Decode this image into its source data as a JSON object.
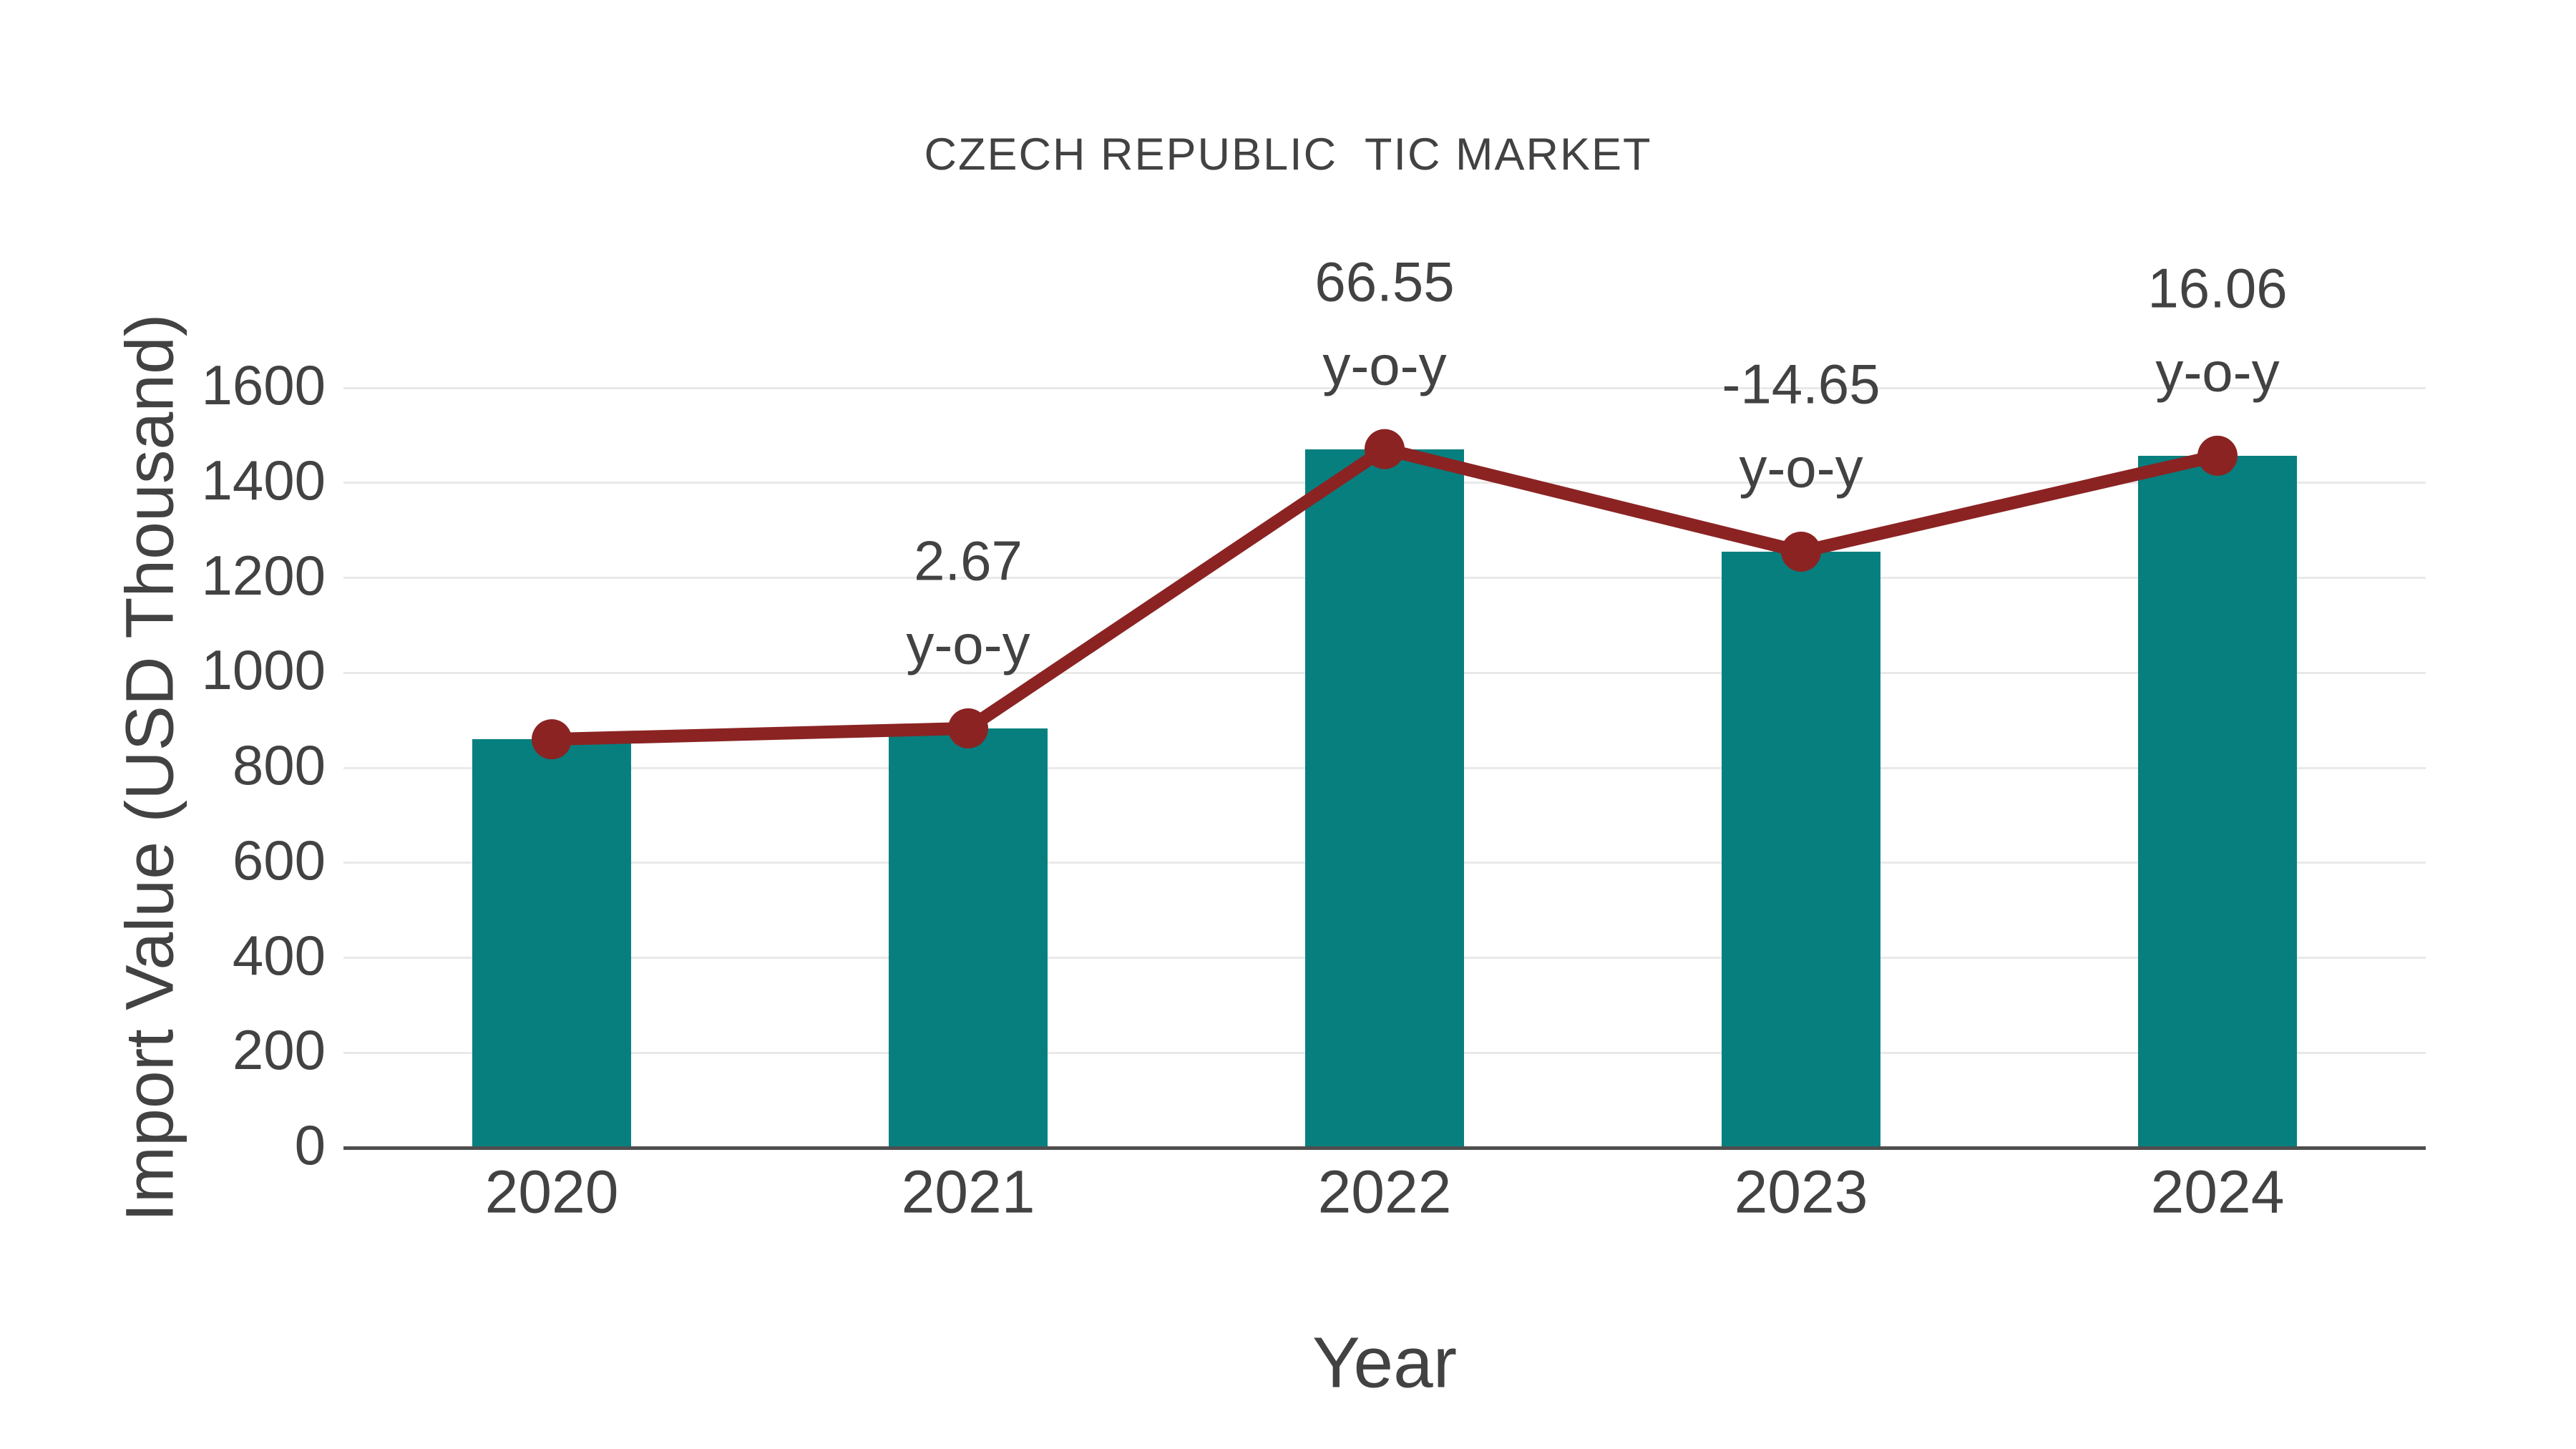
{
  "colors": {
    "bar": "#077f7f",
    "line": "#8b2323",
    "text": "#424242",
    "grid": "#e9e9e9",
    "axis": "#4f4f4f"
  },
  "chart_data": {
    "type": "bar",
    "title": "CZECH REPUBLIC  TIC MARKET",
    "xlabel": "Year",
    "ylabel": "Import Value (USD Thousand)",
    "categories": [
      "2020",
      "2021",
      "2022",
      "2023",
      "2024"
    ],
    "series": [
      {
        "name": "Import Value (USD Thousand)",
        "type": "bar",
        "values": [
          860,
          883,
          1471,
          1255,
          1457
        ]
      },
      {
        "name": "y-o-y growth (%)",
        "type": "line",
        "values": [
          null,
          2.67,
          66.55,
          -14.65,
          16.06
        ]
      }
    ],
    "annotations": [
      {
        "category": "2021",
        "line1": "2.67",
        "line2": "y-o-y"
      },
      {
        "category": "2022",
        "line1": "66.55",
        "line2": "y-o-y"
      },
      {
        "category": "2023",
        "line1": "-14.65",
        "line2": "y-o-y"
      },
      {
        "category": "2024",
        "line1": "16.06",
        "line2": "y-o-y"
      }
    ],
    "ylim": [
      0,
      1600
    ],
    "yticks": [
      0,
      200,
      400,
      600,
      800,
      1000,
      1200,
      1400,
      1600
    ],
    "grid": true,
    "legend_position": "none"
  }
}
